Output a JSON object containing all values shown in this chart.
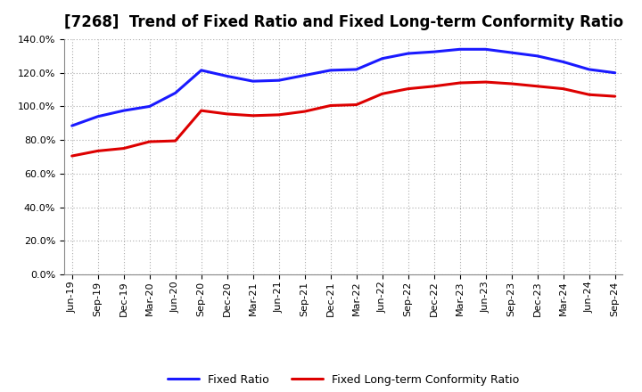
{
  "title": "[7268]  Trend of Fixed Ratio and Fixed Long-term Conformity Ratio",
  "x_labels": [
    "Jun-19",
    "Sep-19",
    "Dec-19",
    "Mar-20",
    "Jun-20",
    "Sep-20",
    "Dec-20",
    "Mar-21",
    "Jun-21",
    "Sep-21",
    "Dec-21",
    "Mar-22",
    "Jun-22",
    "Sep-22",
    "Dec-22",
    "Mar-23",
    "Jun-23",
    "Sep-23",
    "Dec-23",
    "Mar-24",
    "Jun-24",
    "Sep-24"
  ],
  "fixed_ratio": [
    88.5,
    94.0,
    97.5,
    100.0,
    108.0,
    121.5,
    118.0,
    115.0,
    115.5,
    118.5,
    121.5,
    122.0,
    128.5,
    131.5,
    132.5,
    134.0,
    134.0,
    132.0,
    130.0,
    126.5,
    122.0,
    120.0
  ],
  "fixed_lt_ratio": [
    70.5,
    73.5,
    75.0,
    79.0,
    79.5,
    97.5,
    95.5,
    94.5,
    95.0,
    97.0,
    100.5,
    101.0,
    107.5,
    110.5,
    112.0,
    114.0,
    114.5,
    113.5,
    112.0,
    110.5,
    107.0,
    106.0
  ],
  "fixed_ratio_color": "#1a1aff",
  "fixed_lt_ratio_color": "#dd0000",
  "background_color": "#ffffff",
  "plot_bg_color": "#ffffff",
  "grid_color": "#aaaaaa",
  "ylim": [
    0,
    140
  ],
  "yticks": [
    0,
    20,
    40,
    60,
    80,
    100,
    120,
    140
  ],
  "legend_fixed_ratio": "Fixed Ratio",
  "legend_fixed_lt_ratio": "Fixed Long-term Conformity Ratio",
  "line_width": 2.2,
  "title_fontsize": 12,
  "tick_fontsize": 8,
  "legend_fontsize": 9
}
